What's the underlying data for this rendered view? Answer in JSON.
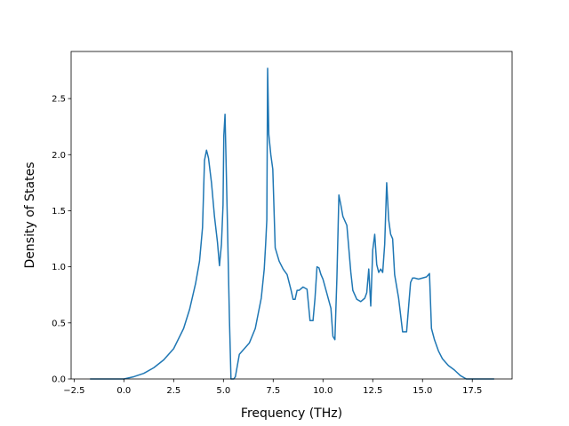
{
  "chart_data": {
    "type": "line",
    "title": "",
    "xlabel": "Frequency (THz)",
    "ylabel": "Density of States",
    "xlim": [
      -2.65,
      19.5
    ],
    "ylim": [
      0,
      2.92
    ],
    "xticks": [
      -2.5,
      0.0,
      2.5,
      5.0,
      7.5,
      10.0,
      12.5,
      15.0,
      17.5
    ],
    "xtick_labels": [
      "−2.5",
      "0.0",
      "2.5",
      "5.0",
      "7.5",
      "10.0",
      "12.5",
      "15.0",
      "17.5"
    ],
    "yticks": [
      0.0,
      0.5,
      1.0,
      1.5,
      2.0,
      2.5
    ],
    "ytick_labels": [
      "0.0",
      "0.5",
      "1.0",
      "1.5",
      "2.0",
      "2.5"
    ],
    "grid": false,
    "legend": "none",
    "line_color": "#1f77b4",
    "series": [
      {
        "x": [
          -1.7,
          -1.0,
          -0.5,
          0.0,
          0.5,
          1.0,
          1.5,
          2.0,
          2.5,
          3.0,
          3.3,
          3.6,
          3.8,
          3.95,
          4.05,
          4.15,
          4.25,
          4.4,
          4.55,
          4.7,
          4.8,
          4.9,
          4.98,
          5.02,
          5.08,
          5.2,
          5.3,
          5.38,
          5.45,
          5.52,
          5.6,
          5.7,
          5.8,
          6.0,
          6.3,
          6.6,
          6.9,
          7.05,
          7.12,
          7.18,
          7.22,
          7.28,
          7.38,
          7.48,
          7.6,
          7.8,
          8.0,
          8.2,
          8.4,
          8.5,
          8.6,
          8.7,
          8.8,
          9.0,
          9.2,
          9.35,
          9.5,
          9.6,
          9.7,
          9.8,
          9.9,
          10.0,
          10.2,
          10.4,
          10.5,
          10.6,
          10.7,
          10.8,
          10.9,
          11.0,
          11.2,
          11.4,
          11.5,
          11.7,
          11.9,
          12.1,
          12.2,
          12.3,
          12.4,
          12.5,
          12.6,
          12.7,
          12.8,
          12.9,
          13.0,
          13.1,
          13.2,
          13.3,
          13.4,
          13.5,
          13.6,
          13.8,
          14.0,
          14.2,
          14.4,
          14.5,
          14.6,
          14.8,
          15.0,
          15.2,
          15.35,
          15.45,
          15.6,
          15.8,
          16.0,
          16.3,
          16.6,
          16.9,
          17.2,
          18.6
        ],
        "y": [
          0.0,
          0.0,
          0.0,
          0.0,
          0.02,
          0.05,
          0.1,
          0.17,
          0.27,
          0.45,
          0.62,
          0.85,
          1.05,
          1.35,
          1.95,
          2.04,
          1.97,
          1.75,
          1.45,
          1.22,
          1.01,
          1.2,
          1.55,
          2.17,
          2.36,
          1.4,
          0.55,
          0.0,
          0.0,
          0.0,
          0.02,
          0.12,
          0.22,
          0.26,
          0.32,
          0.45,
          0.72,
          0.98,
          1.2,
          1.42,
          2.77,
          2.18,
          2.0,
          1.87,
          1.17,
          1.05,
          0.98,
          0.93,
          0.79,
          0.71,
          0.71,
          0.79,
          0.79,
          0.82,
          0.8,
          0.52,
          0.52,
          0.72,
          1.0,
          0.99,
          0.93,
          0.89,
          0.76,
          0.63,
          0.38,
          0.35,
          0.9,
          1.64,
          1.55,
          1.45,
          1.37,
          0.95,
          0.79,
          0.71,
          0.69,
          0.72,
          0.77,
          0.98,
          0.65,
          1.15,
          1.29,
          1.02,
          0.95,
          0.98,
          0.95,
          1.2,
          1.75,
          1.42,
          1.29,
          1.25,
          0.93,
          0.72,
          0.42,
          0.42,
          0.86,
          0.9,
          0.9,
          0.89,
          0.9,
          0.91,
          0.94,
          0.45,
          0.35,
          0.25,
          0.18,
          0.12,
          0.08,
          0.03,
          0.0,
          0.0
        ]
      }
    ]
  }
}
